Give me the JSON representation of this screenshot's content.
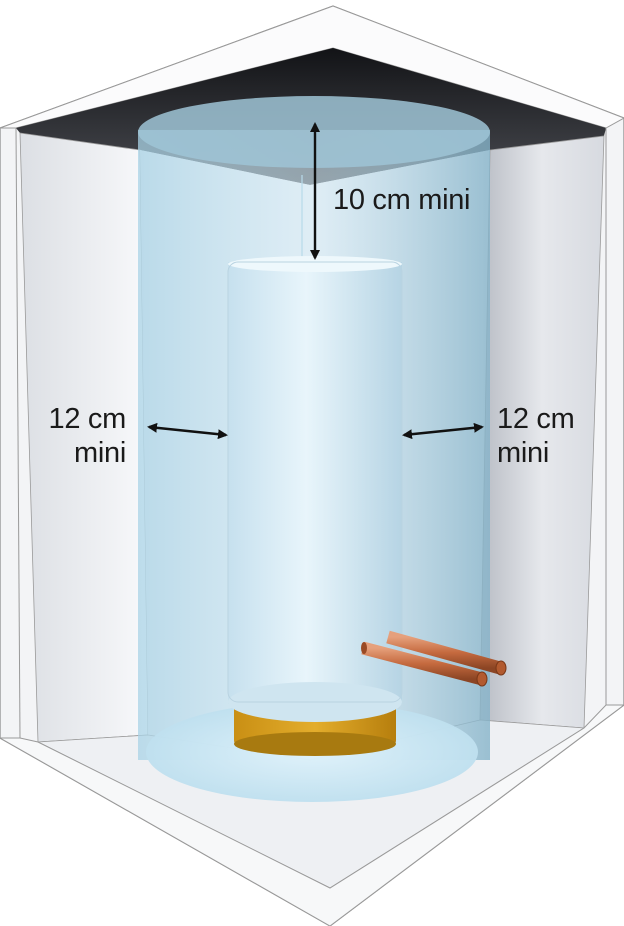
{
  "labels": {
    "top_clearance": "10 cm mini",
    "left_clearance_value": "12 cm",
    "left_clearance_unit": "mini",
    "right_clearance_value": "12 cm",
    "right_clearance_unit": "mini"
  },
  "colors": {
    "cabinet_outer": "#f4f5f7",
    "cabinet_edge": "#ffffff",
    "cabinet_ceiling": "#2a2b2f",
    "cabinet_inner_wall": "#e8eaee",
    "clearance_zone": "#9ccbe2",
    "tank_body": "#d6ebf6",
    "tank_base": "#d8a020",
    "pipes": "#c9744a",
    "arrow": "#111111"
  }
}
